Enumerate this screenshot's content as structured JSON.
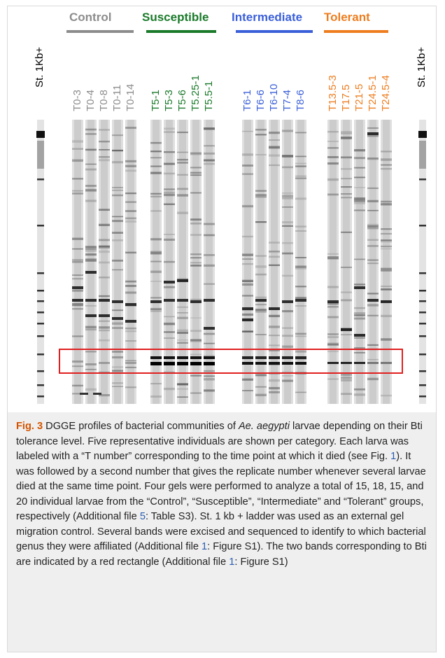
{
  "groups": [
    {
      "name": "Control",
      "color": "#8c8c8c",
      "lanes": [
        "T0-3",
        "T0-4",
        "T0-8",
        "T0-11",
        "T0-14"
      ]
    },
    {
      "name": "Susceptible",
      "color": "#1a7a2a",
      "lanes": [
        "T5-1",
        "T5-3",
        "T5-6",
        "T5.25-1",
        "T5.5-1"
      ]
    },
    {
      "name": "Intermediate",
      "color": "#3a5fd9",
      "lanes": [
        "T6-1",
        "T6-6",
        "T6-10",
        "T7-4",
        "T8-6"
      ]
    },
    {
      "name": "Tolerant",
      "color": "#ee7d1f",
      "lanes": [
        "T13.5-3",
        "T17.5",
        "T21-5",
        "T24.5-1",
        "T24.5-4"
      ]
    }
  ],
  "ladder_label": "St. 1Kb+",
  "highlight_color": "#e02020",
  "caption": {
    "fig_label": "Fig. 3",
    "text_1": " DGGE profiles of bacterial communities of ",
    "species": "Ae. aegypti",
    "text_2": " larvae depending on their Bti tolerance level. Five representative individuals are shown per category. Each larva was labeled with a “T number” corresponding to the time point at which it died (see Fig. ",
    "ref_fig1": "1",
    "text_3": "). It was followed by a second number that gives the replicate number whenever several larvae died at the same time point. Four gels were performed to analyze a total of 15, 18, 15, and 20 individual larvae from the “Control”, “Susceptible”, “Intermediate” and “Tolerant” groups, respectively (Additional file ",
    "ref_file5": "5",
    "text_4": ": Table S3). St. 1 kb + ladder was used as an external gel migration control. Several bands were excised and sequenced to identify to which bacterial genus they were affiliated (Additional file ",
    "ref_file1a": "1",
    "text_5": ": Figure S1). The two bands corresponding to Bti are indicated by a red rectangle (Additional file ",
    "ref_file1b": "1",
    "text_6": ": Figure S1)"
  }
}
